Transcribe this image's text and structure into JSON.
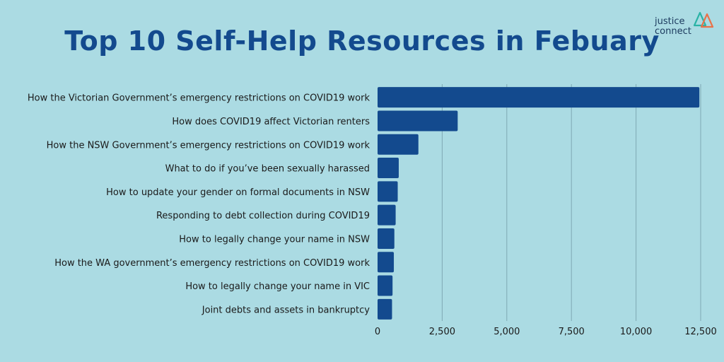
{
  "logo": {
    "line1": "justice",
    "line2": "connect",
    "name": "justice-connect-logo",
    "colors": [
      "#e8734a",
      "#2bb3a6",
      "#134a8e"
    ]
  },
  "chart_data": {
    "type": "bar",
    "orientation": "horizontal",
    "title": "Top 10 Self-Help Resources in Febuary",
    "xlabel": "",
    "ylabel": "",
    "categories": [
      "How the Victorian Government’s emergency restrictions on COVID19 work",
      "How does COVID19 affect Victorian renters",
      "How the NSW Government’s emergency restrictions on COVID19 work",
      "What to do if you’ve been sexually harassed",
      "How to update your gender on formal documents in NSW",
      "Responding to debt collection during COVID19",
      "How to legally change your name in NSW",
      "How the WA government’s emergency restrictions on COVID19 work",
      "How to legally change your name in VIC",
      "Joint debts and assets in bankruptcy"
    ],
    "values": [
      12450,
      3100,
      1580,
      820,
      780,
      700,
      650,
      630,
      580,
      560
    ],
    "xlim": [
      0,
      12500
    ],
    "ticks": [
      0,
      2500,
      5000,
      7500,
      10000,
      12500
    ],
    "tick_labels": [
      "0",
      "2,500",
      "5,000",
      "7,500",
      "10,000",
      "12,500"
    ],
    "grid": true,
    "legend": "none",
    "bar_color": "#134a8e",
    "grid_color": "#7fa9b4",
    "background": "#abdbe3"
  }
}
